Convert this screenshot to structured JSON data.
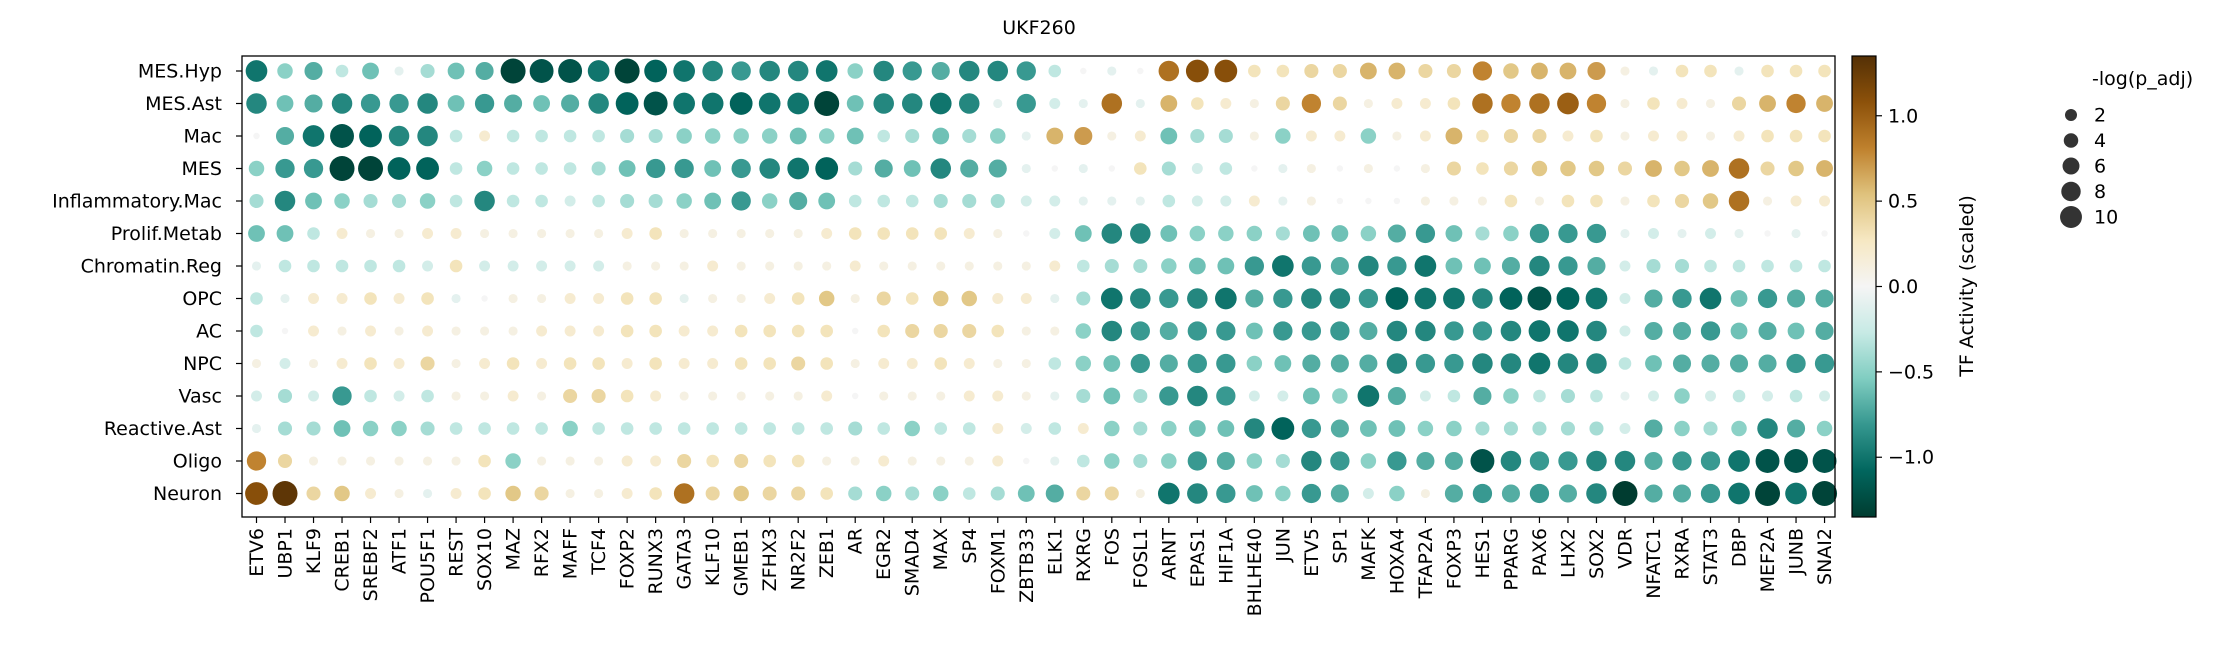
{
  "chart_data": {
    "type": "heatmap",
    "subtype": "dotplot",
    "title": "UKF260",
    "rows": [
      "MES.Hyp",
      "MES.Ast",
      "Mac",
      "MES",
      "Inflammatory.Mac",
      "Prolif.Metab",
      "Chromatin.Reg",
      "OPC",
      "AC",
      "NPC",
      "Vasc",
      "Reactive.Ast",
      "Oligo",
      "Neuron"
    ],
    "columns": [
      "ETV6",
      "UBP1",
      "KLF9",
      "CREB1",
      "SREBF2",
      "ATF1",
      "POU5F1",
      "REST",
      "SOX10",
      "MAZ",
      "RFX2",
      "MAFF",
      "TCF4",
      "FOXP2",
      "RUNX3",
      "GATA3",
      "KLF10",
      "GMEB1",
      "ZFHX3",
      "NR2F2",
      "ZEB1",
      "AR",
      "EGR2",
      "SMAD4",
      "MAX",
      "SP4",
      "FOXM1",
      "ZBTB33",
      "ELK1",
      "RXRG",
      "FOS",
      "FOSL1",
      "ARNT",
      "EPAS1",
      "HIF1A",
      "BHLHE40",
      "JUN",
      "ETV5",
      "SP1",
      "MAFK",
      "HOXA4",
      "TFAP2A",
      "FOXP3",
      "HES1",
      "PPARG",
      "PAX6",
      "LHX2",
      "SOX2",
      "VDR",
      "NFATC1",
      "RXRA",
      "STAT3",
      "DBP",
      "MEF2A",
      "JUNB",
      "SNAI2"
    ],
    "values": [
      [
        -1.0,
        -0.5,
        -0.7,
        -0.3,
        -0.6,
        -0.1,
        -0.4,
        -0.6,
        -0.7,
        -1.3,
        -1.2,
        -1.2,
        -1.0,
        -1.3,
        -1.1,
        -1.0,
        -0.9,
        -0.8,
        -0.9,
        -0.9,
        -1.0,
        -0.5,
        -0.9,
        -0.8,
        -0.7,
        -0.9,
        -0.9,
        -0.8,
        -0.3,
        0.0,
        -0.1,
        0.0,
        0.9,
        1.1,
        1.1,
        0.3,
        0.3,
        0.4,
        0.4,
        0.6,
        0.6,
        0.4,
        0.4,
        0.8,
        0.5,
        0.6,
        0.6,
        0.7,
        0.1,
        -0.1,
        0.3,
        0.3,
        -0.1,
        0.3,
        0.3,
        0.3
      ],
      [
        -0.9,
        -0.6,
        -0.7,
        -0.9,
        -0.8,
        -0.8,
        -0.9,
        -0.6,
        -0.8,
        -0.7,
        -0.6,
        -0.7,
        -0.9,
        -1.1,
        -1.2,
        -1.0,
        -1.0,
        -1.1,
        -1.0,
        -1.0,
        -1.3,
        -0.6,
        -0.9,
        -0.9,
        -1.0,
        -0.9,
        -0.1,
        -0.8,
        -0.2,
        -0.1,
        0.9,
        -0.1,
        0.6,
        0.3,
        0.2,
        0.1,
        0.4,
        0.8,
        0.4,
        0.1,
        0.2,
        0.2,
        0.3,
        0.9,
        0.8,
        0.9,
        1.0,
        0.8,
        0.1,
        0.3,
        0.2,
        0.1,
        0.4,
        0.6,
        0.8,
        0.6
      ],
      [
        0.0,
        -0.7,
        -1.0,
        -1.2,
        -1.1,
        -0.9,
        -0.9,
        -0.3,
        0.2,
        -0.3,
        -0.3,
        -0.3,
        -0.3,
        -0.4,
        -0.4,
        -0.5,
        -0.5,
        -0.5,
        -0.5,
        -0.6,
        -0.5,
        -0.6,
        -0.3,
        -0.4,
        -0.6,
        -0.4,
        -0.5,
        -0.1,
        0.6,
        0.7,
        0.1,
        0.2,
        -0.6,
        -0.4,
        -0.4,
        0.1,
        -0.5,
        0.2,
        0.2,
        -0.5,
        0.1,
        0.2,
        0.6,
        0.3,
        0.4,
        0.4,
        0.2,
        0.3,
        0.1,
        0.2,
        0.2,
        0.1,
        0.2,
        0.3,
        0.3,
        0.3
      ],
      [
        -0.5,
        -0.8,
        -0.8,
        -1.3,
        -1.3,
        -1.1,
        -1.1,
        -0.3,
        -0.5,
        -0.3,
        -0.3,
        -0.3,
        -0.4,
        -0.6,
        -0.8,
        -0.8,
        -0.6,
        -0.8,
        -0.9,
        -1.0,
        -1.1,
        -0.4,
        -0.7,
        -0.6,
        -0.9,
        -0.7,
        -0.7,
        -0.1,
        0.0,
        -0.1,
        0.0,
        0.3,
        -0.4,
        -0.2,
        -0.3,
        0.0,
        -0.1,
        0.1,
        0.0,
        0.1,
        0.0,
        0.1,
        0.4,
        0.3,
        0.4,
        0.5,
        0.5,
        0.5,
        0.4,
        0.6,
        0.5,
        0.6,
        0.9,
        0.4,
        0.5,
        0.6
      ],
      [
        -0.4,
        -0.9,
        -0.6,
        -0.5,
        -0.4,
        -0.4,
        -0.5,
        -0.3,
        -0.9,
        -0.3,
        -0.3,
        -0.2,
        -0.3,
        -0.4,
        -0.4,
        -0.5,
        -0.6,
        -0.8,
        -0.5,
        -0.7,
        -0.6,
        -0.3,
        -0.3,
        -0.3,
        -0.4,
        -0.4,
        -0.4,
        -0.2,
        -0.2,
        -0.1,
        -0.1,
        -0.1,
        -0.3,
        -0.2,
        -0.2,
        0.2,
        -0.1,
        0.1,
        0.0,
        0.0,
        0.0,
        0.1,
        0.1,
        0.1,
        0.3,
        0.1,
        0.3,
        0.3,
        0.1,
        0.3,
        0.4,
        0.5,
        0.9,
        0.1,
        0.2,
        0.2
      ],
      [
        -0.6,
        -0.6,
        -0.3,
        0.2,
        0.1,
        0.1,
        0.2,
        0.2,
        0.1,
        0.1,
        0.1,
        0.1,
        0.1,
        0.2,
        0.3,
        0.1,
        0.1,
        0.1,
        0.1,
        0.1,
        0.2,
        0.3,
        0.3,
        0.3,
        0.3,
        0.2,
        0.1,
        0.0,
        -0.2,
        -0.6,
        -0.9,
        -0.9,
        -0.6,
        -0.5,
        -0.5,
        -0.5,
        -0.4,
        -0.6,
        -0.6,
        -0.5,
        -0.7,
        -0.8,
        -0.6,
        -0.4,
        -0.5,
        -0.8,
        -0.8,
        -0.8,
        -0.1,
        -0.2,
        -0.1,
        -0.2,
        -0.1,
        0.0,
        -0.1,
        0.0
      ],
      [
        -0.1,
        -0.3,
        -0.3,
        -0.3,
        -0.3,
        -0.3,
        -0.2,
        0.3,
        -0.2,
        -0.2,
        -0.2,
        -0.2,
        -0.2,
        0.1,
        0.1,
        0.1,
        0.2,
        0.1,
        0.1,
        0.1,
        0.1,
        0.2,
        0.1,
        0.1,
        0.1,
        0.1,
        0.1,
        0.1,
        0.2,
        -0.3,
        -0.4,
        -0.4,
        -0.5,
        -0.6,
        -0.6,
        -0.8,
        -1.0,
        -0.8,
        -0.7,
        -0.9,
        -0.8,
        -1.0,
        -0.6,
        -0.6,
        -0.7,
        -0.9,
        -0.8,
        -0.7,
        -0.2,
        -0.4,
        -0.4,
        -0.3,
        -0.3,
        -0.3,
        -0.3,
        -0.3
      ],
      [
        -0.3,
        -0.1,
        0.2,
        0.2,
        0.3,
        0.2,
        0.3,
        -0.1,
        0.0,
        0.1,
        0.1,
        0.2,
        0.2,
        0.3,
        0.3,
        -0.1,
        0.1,
        0.1,
        0.2,
        0.3,
        0.5,
        0.1,
        0.4,
        0.3,
        0.5,
        0.5,
        0.2,
        0.2,
        -0.1,
        -0.4,
        -1.0,
        -0.9,
        -0.8,
        -0.9,
        -1.0,
        -0.7,
        -0.8,
        -0.9,
        -0.9,
        -0.8,
        -1.1,
        -1.0,
        -1.0,
        -0.9,
        -1.1,
        -1.2,
        -1.1,
        -1.0,
        -0.2,
        -0.7,
        -0.8,
        -1.0,
        -0.6,
        -0.8,
        -0.7,
        -0.7
      ],
      [
        -0.3,
        0.0,
        0.2,
        0.1,
        0.2,
        0.1,
        0.2,
        0.1,
        0.1,
        0.1,
        0.2,
        0.2,
        0.2,
        0.3,
        0.3,
        0.2,
        0.2,
        0.3,
        0.3,
        0.3,
        0.3,
        0.0,
        0.3,
        0.4,
        0.4,
        0.4,
        0.3,
        0.1,
        0.1,
        -0.5,
        -0.9,
        -0.8,
        -0.7,
        -0.8,
        -0.8,
        -0.6,
        -0.8,
        -0.8,
        -0.8,
        -0.7,
        -0.9,
        -0.9,
        -0.8,
        -0.8,
        -0.9,
        -1.0,
        -1.0,
        -0.9,
        -0.2,
        -0.7,
        -0.7,
        -0.8,
        -0.6,
        -0.7,
        -0.6,
        -0.7
      ],
      [
        0.1,
        -0.2,
        0.1,
        0.2,
        0.3,
        0.2,
        0.4,
        0.1,
        0.2,
        0.3,
        0.2,
        0.3,
        0.3,
        0.2,
        0.3,
        0.2,
        0.2,
        0.3,
        0.3,
        0.4,
        0.3,
        0.1,
        0.2,
        0.2,
        0.3,
        0.2,
        0.1,
        0.1,
        -0.3,
        -0.5,
        -0.6,
        -0.8,
        -0.7,
        -0.8,
        -0.8,
        -0.5,
        -0.6,
        -0.7,
        -0.7,
        -0.7,
        -0.9,
        -0.8,
        -0.8,
        -0.9,
        -0.9,
        -1.0,
        -0.9,
        -0.9,
        -0.3,
        -0.6,
        -0.7,
        -0.7,
        -0.7,
        -0.7,
        -0.8,
        -0.8
      ],
      [
        -0.2,
        -0.4,
        -0.2,
        -0.8,
        -0.3,
        -0.2,
        -0.3,
        0.1,
        0.1,
        0.2,
        0.1,
        0.4,
        0.4,
        0.3,
        0.2,
        0.1,
        0.1,
        0.1,
        0.1,
        0.1,
        0.2,
        0.0,
        0.1,
        0.1,
        0.1,
        0.2,
        0.2,
        0.1,
        -0.1,
        -0.4,
        -0.6,
        -0.4,
        -0.8,
        -0.9,
        -0.8,
        -0.2,
        -0.2,
        -0.6,
        -0.5,
        -1.0,
        -0.7,
        -0.2,
        -0.3,
        -0.7,
        -0.5,
        -0.3,
        -0.4,
        -0.3,
        -0.1,
        -0.2,
        -0.5,
        -0.2,
        -0.3,
        -0.2,
        -0.3,
        -0.2
      ],
      [
        -0.1,
        -0.4,
        -0.4,
        -0.6,
        -0.5,
        -0.5,
        -0.4,
        -0.3,
        -0.3,
        -0.3,
        -0.3,
        -0.5,
        -0.3,
        -0.3,
        -0.3,
        -0.3,
        -0.3,
        -0.3,
        -0.3,
        -0.3,
        -0.3,
        -0.4,
        -0.3,
        -0.5,
        -0.3,
        -0.3,
        0.2,
        -0.2,
        -0.3,
        0.2,
        -0.5,
        -0.4,
        -0.5,
        -0.6,
        -0.6,
        -0.9,
        -1.1,
        -0.8,
        -0.7,
        -0.6,
        -0.6,
        -0.5,
        -0.5,
        -0.4,
        -0.4,
        -0.4,
        -0.4,
        -0.4,
        -0.2,
        -0.7,
        -0.5,
        -0.4,
        -0.5,
        -0.9,
        -0.7,
        -0.5
      ],
      [
        0.8,
        0.4,
        0.1,
        0.1,
        0.1,
        0.1,
        0.1,
        0.1,
        0.3,
        -0.5,
        0.1,
        0.1,
        0.1,
        0.2,
        0.2,
        0.4,
        0.3,
        0.4,
        0.3,
        0.3,
        0.1,
        0.1,
        0.2,
        0.1,
        0.1,
        0.1,
        0.2,
        0.0,
        -0.1,
        -0.3,
        -0.5,
        -0.4,
        -0.5,
        -0.8,
        -0.7,
        -0.5,
        -0.4,
        -0.9,
        -0.8,
        -0.5,
        -0.8,
        -0.7,
        -0.7,
        -1.2,
        -0.9,
        -0.8,
        -0.8,
        -0.9,
        -0.9,
        -0.7,
        -0.8,
        -0.8,
        -1.0,
        -1.2,
        -1.2,
        -1.2
      ],
      [
        1.1,
        1.3,
        0.4,
        0.5,
        0.2,
        0.1,
        -0.1,
        0.2,
        0.3,
        0.5,
        0.4,
        0.1,
        0.1,
        0.2,
        0.3,
        0.9,
        0.4,
        0.5,
        0.4,
        0.4,
        0.3,
        -0.4,
        -0.5,
        -0.4,
        -0.5,
        -0.3,
        -0.4,
        -0.6,
        -0.7,
        0.4,
        0.4,
        0.1,
        -1.0,
        -0.9,
        -0.8,
        -0.6,
        -0.5,
        -0.8,
        -0.7,
        -0.2,
        -0.5,
        0.1,
        -0.7,
        -0.8,
        -0.7,
        -0.8,
        -0.7,
        -0.9,
        -1.4,
        -0.7,
        -0.7,
        -0.8,
        -1.0,
        -1.3,
        -1.0,
        -1.3
      ]
    ],
    "size_legend": {
      "title": "-log(p_adj)",
      "values": [
        2,
        4,
        6,
        8,
        10
      ]
    },
    "colorbar": {
      "label": "TF Activity (scaled)",
      "range": [
        -1.35,
        1.35
      ],
      "ticks": [
        -1.0,
        -0.5,
        0.0,
        0.5,
        1.0
      ],
      "tick_labels": [
        "−1.0",
        "−0.5",
        "0.0",
        "0.5",
        "1.0"
      ],
      "colormap": "BrBG_r"
    }
  }
}
